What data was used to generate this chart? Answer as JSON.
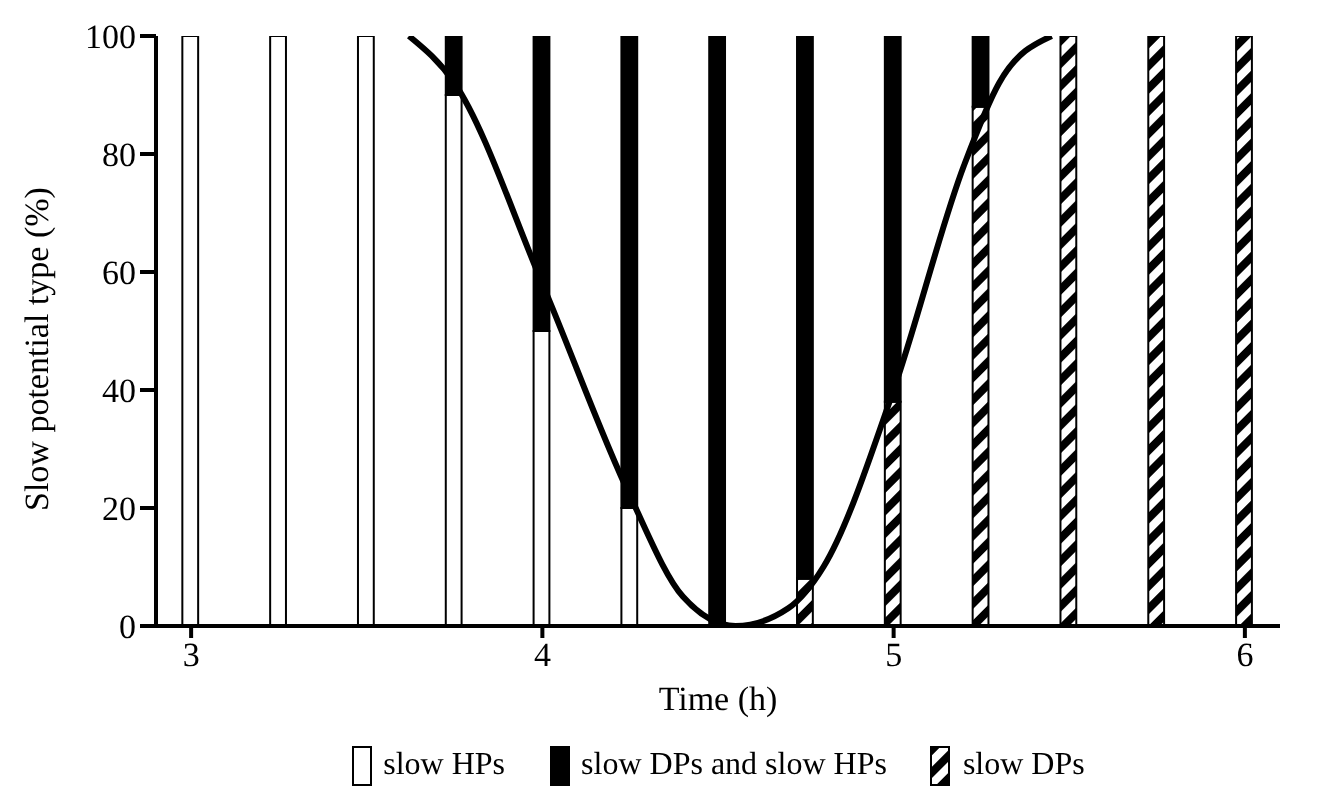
{
  "chart_data": {
    "type": "bar",
    "stacked": true,
    "xlabel": "Time (h)",
    "ylabel": "Slow potential type (%)",
    "x": [
      3,
      3.25,
      3.5,
      3.75,
      4,
      4.25,
      4.5,
      4.75,
      5,
      5.25,
      5.5,
      5.75,
      6
    ],
    "series": [
      {
        "name": "slow HPs",
        "color": "#ffffff",
        "values": [
          100,
          100,
          100,
          90,
          50,
          20,
          0,
          0,
          0,
          0,
          0,
          0,
          0
        ]
      },
      {
        "name": "slow DPs",
        "color": "#000000",
        "values": [
          0,
          0,
          0,
          0,
          0,
          0,
          0,
          8,
          38,
          88,
          100,
          100,
          100
        ]
      },
      {
        "name": "slow DPs and slow HPs",
        "color": "#000000",
        "values": [
          0,
          0,
          0,
          10,
          50,
          80,
          100,
          92,
          62,
          12,
          0,
          0,
          0
        ]
      },
      {
        "type": "line",
        "color": "#000000",
        "x": [
          3.62,
          3.75,
          4,
          4.25,
          4.4,
          4.55,
          4.7,
          4.8,
          5,
          5.2,
          5.3,
          5.45
        ],
        "values": [
          100,
          92,
          58,
          22,
          5,
          0,
          3,
          10,
          40,
          78,
          92,
          100
        ]
      }
    ],
    "xlim": [
      2.9,
      6.1
    ],
    "xticks": [
      3,
      4,
      5,
      6
    ],
    "ylim": [
      0,
      100
    ],
    "yticks": [
      0,
      20,
      40,
      60,
      80,
      100
    ],
    "grid": false,
    "legend": "bottom"
  }
}
